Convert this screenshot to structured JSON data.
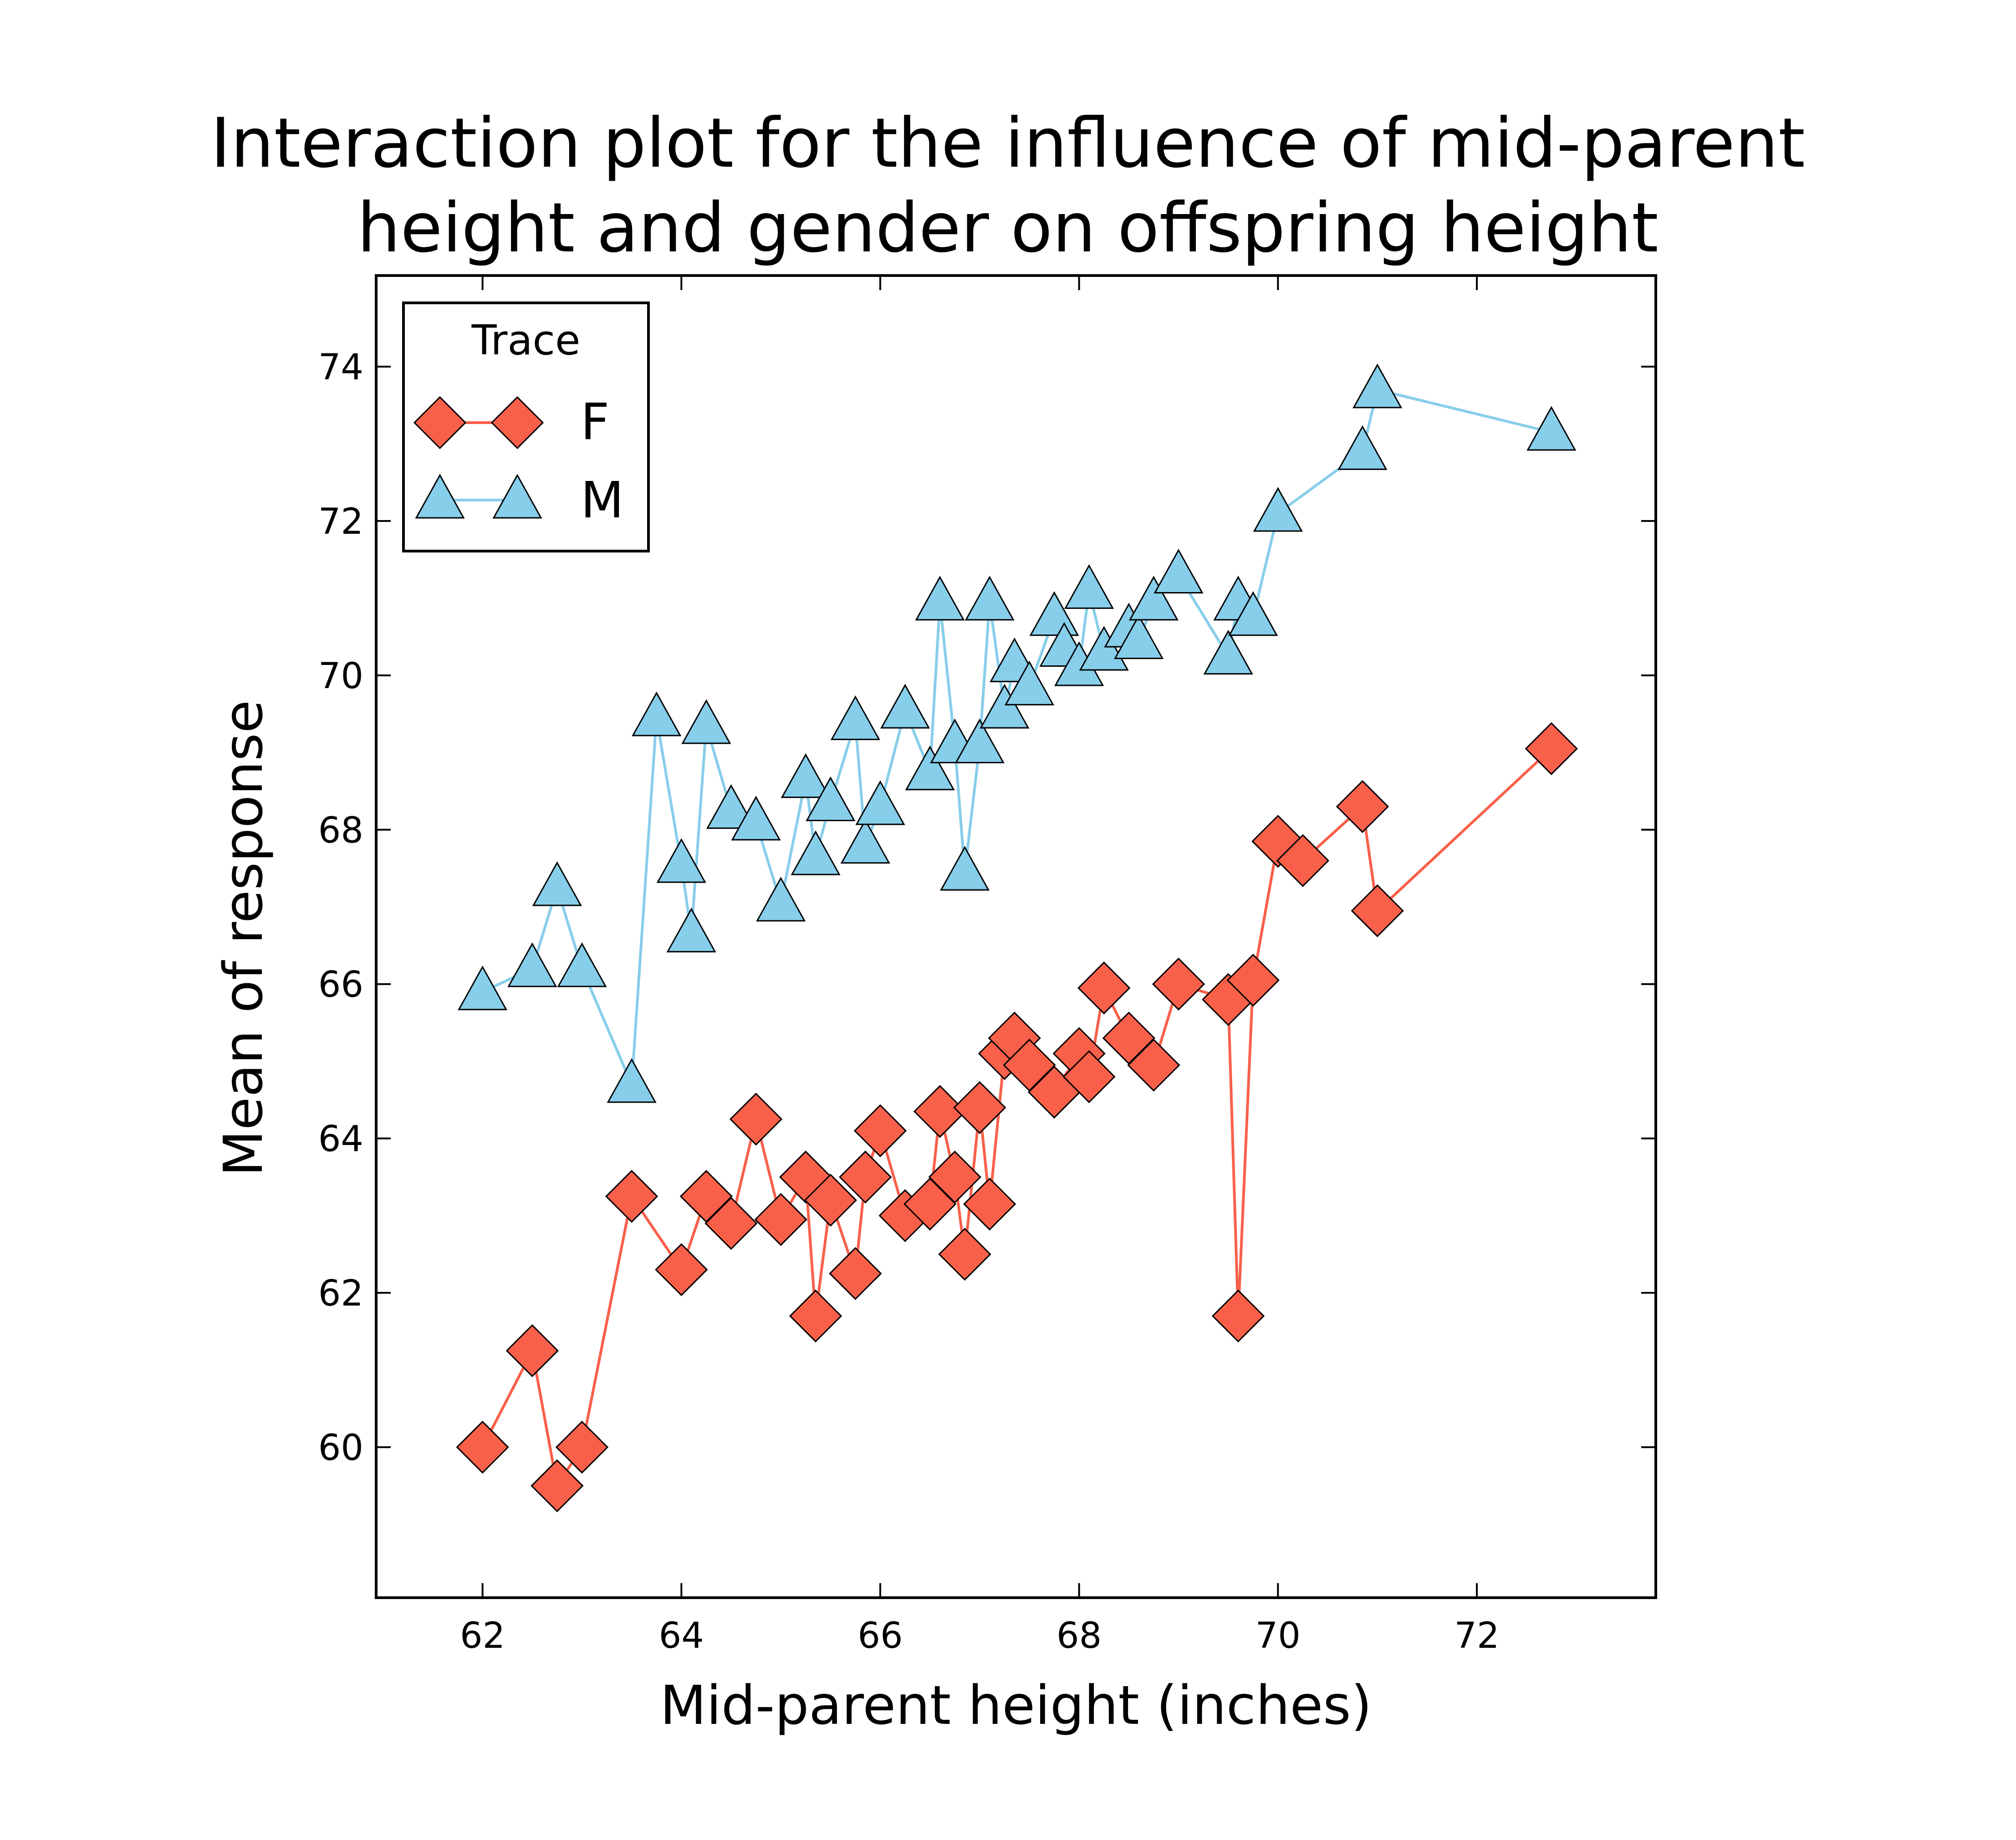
{
  "chart_data": {
    "type": "line",
    "title": "Interaction plot for the influence of mid-parent height and gender on offspring height",
    "title_lines": [
      "Interaction plot for the influence of mid-parent",
      "height and gender on offspring height"
    ],
    "xlabel": "Mid-parent height (inches)",
    "ylabel": "Mean of response",
    "xlim": [
      60.93,
      73.8
    ],
    "ylim": [
      58.05,
      75.18
    ],
    "xticks": [
      62,
      64,
      66,
      68,
      70,
      72
    ],
    "yticks": [
      60,
      62,
      64,
      66,
      68,
      70,
      72,
      74
    ],
    "grid": false,
    "legend": {
      "title": "Trace",
      "position": "top-left"
    },
    "series": [
      {
        "name": "F",
        "color": "#f9604a",
        "marker": "diamond",
        "points": [
          [
            62.0,
            60.0
          ],
          [
            62.5,
            61.25
          ],
          [
            62.75,
            59.5
          ],
          [
            63.0,
            60.0
          ],
          [
            63.5,
            63.25
          ],
          [
            64.0,
            62.3
          ],
          [
            64.25,
            63.25
          ],
          [
            64.5,
            62.9
          ],
          [
            64.75,
            64.25
          ],
          [
            65.0,
            62.95
          ],
          [
            65.25,
            63.5
          ],
          [
            65.35,
            61.7
          ],
          [
            65.5,
            63.2
          ],
          [
            65.75,
            62.25
          ],
          [
            65.85,
            63.5
          ],
          [
            66.0,
            64.1
          ],
          [
            66.25,
            63.0
          ],
          [
            66.5,
            63.15
          ],
          [
            66.6,
            64.35
          ],
          [
            66.75,
            63.5
          ],
          [
            66.85,
            62.5
          ],
          [
            67.0,
            64.4
          ],
          [
            67.1,
            63.15
          ],
          [
            67.25,
            65.1
          ],
          [
            67.35,
            65.3
          ],
          [
            67.5,
            64.95
          ],
          [
            67.75,
            64.6
          ],
          [
            68.0,
            65.1
          ],
          [
            68.1,
            64.8
          ],
          [
            68.25,
            65.95
          ],
          [
            68.5,
            65.3
          ],
          [
            68.75,
            64.95
          ],
          [
            69.0,
            66.0
          ],
          [
            69.5,
            65.8
          ],
          [
            69.6,
            61.7
          ],
          [
            69.75,
            66.05
          ],
          [
            70.0,
            67.85
          ],
          [
            70.25,
            67.6
          ],
          [
            70.85,
            68.3
          ],
          [
            71.0,
            66.95
          ],
          [
            72.75,
            69.05
          ]
        ]
      },
      {
        "name": "M",
        "color": "#87ceeb",
        "marker": "triangle",
        "points": [
          [
            62.0,
            65.9
          ],
          [
            62.5,
            66.2
          ],
          [
            62.75,
            67.25
          ],
          [
            63.0,
            66.2
          ],
          [
            63.5,
            64.7
          ],
          [
            63.75,
            69.45
          ],
          [
            64.0,
            67.55
          ],
          [
            64.1,
            66.65
          ],
          [
            64.25,
            69.35
          ],
          [
            64.5,
            68.25
          ],
          [
            64.75,
            68.1
          ],
          [
            65.0,
            67.05
          ],
          [
            65.25,
            68.65
          ],
          [
            65.35,
            67.65
          ],
          [
            65.5,
            68.35
          ],
          [
            65.75,
            69.4
          ],
          [
            65.85,
            67.8
          ],
          [
            66.0,
            68.3
          ],
          [
            66.25,
            69.55
          ],
          [
            66.5,
            68.75
          ],
          [
            66.6,
            70.95
          ],
          [
            66.75,
            69.1
          ],
          [
            66.85,
            67.45
          ],
          [
            67.0,
            69.1
          ],
          [
            67.1,
            70.95
          ],
          [
            67.25,
            69.55
          ],
          [
            67.35,
            70.15
          ],
          [
            67.5,
            69.85
          ],
          [
            67.75,
            70.75
          ],
          [
            67.85,
            70.35
          ],
          [
            68.0,
            70.1
          ],
          [
            68.1,
            71.1
          ],
          [
            68.25,
            70.3
          ],
          [
            68.5,
            70.6
          ],
          [
            68.6,
            70.45
          ],
          [
            68.75,
            70.95
          ],
          [
            69.0,
            71.3
          ],
          [
            69.5,
            70.25
          ],
          [
            69.6,
            70.95
          ],
          [
            69.75,
            70.75
          ],
          [
            70.0,
            72.1
          ],
          [
            70.85,
            72.9
          ],
          [
            71.0,
            73.7
          ],
          [
            72.75,
            73.15
          ]
        ]
      }
    ]
  }
}
